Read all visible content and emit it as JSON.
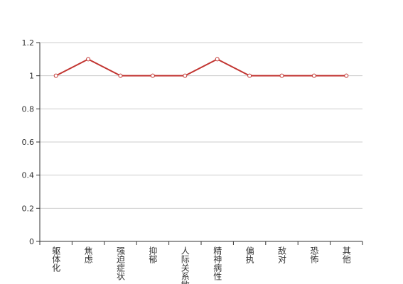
{
  "chart_data": {
    "type": "line",
    "categories": [
      "躯体化",
      "焦虑",
      "强迫症状",
      "抑郁",
      "人际关系敏感",
      "精神病性",
      "偏执",
      "敌对",
      "恐怖",
      "其他"
    ],
    "values": [
      1,
      1.1,
      1,
      1,
      1,
      1.1,
      1,
      1,
      1,
      1
    ],
    "color": "#c23531",
    "ylim": [
      0,
      1.2
    ],
    "yticks": [
      0,
      0.2,
      0.4,
      0.6,
      0.8,
      1,
      1.2
    ],
    "grid": true
  }
}
